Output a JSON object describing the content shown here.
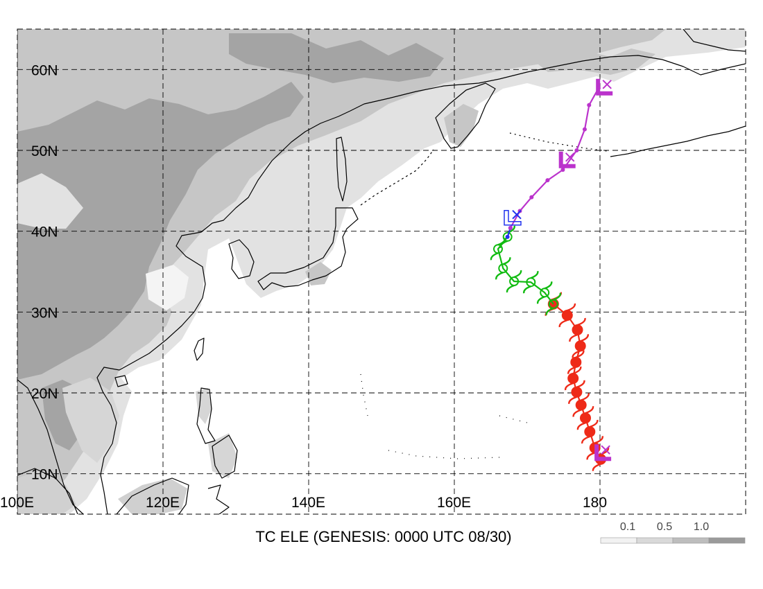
{
  "title": "TC ELE (GENESIS: 0000 UTC 08/30)",
  "map": {
    "lon_range": [
      100,
      200
    ],
    "lat_range": [
      5,
      65
    ],
    "lon_ticks": [
      {
        "lon": 100,
        "label": "100E"
      },
      {
        "lon": 120,
        "label": "120E"
      },
      {
        "lon": 140,
        "label": "140E"
      },
      {
        "lon": 160,
        "label": "160E"
      },
      {
        "lon": 180,
        "label": "180"
      }
    ],
    "lat_ticks": [
      {
        "lat": 10,
        "label": "10N"
      },
      {
        "lat": 20,
        "label": "20N"
      },
      {
        "lat": 30,
        "label": "30N"
      },
      {
        "lat": 40,
        "label": "40N"
      },
      {
        "lat": 50,
        "label": "50N"
      },
      {
        "lat": 60,
        "label": "60N"
      }
    ],
    "grid": "dashed"
  },
  "legend": {
    "labels": [
      "0.1",
      "0.5",
      "1.0"
    ],
    "colors": [
      "#f2f2f2",
      "#d9d9d9",
      "#bdbdbd",
      "#9a9a9a"
    ]
  },
  "colors": {
    "red": "#ee2a18",
    "green": "#11bb11",
    "purple": "#bb33cc",
    "blue": "#2233ee",
    "land_light": "#e2e2e2",
    "land_mid": "#c6c6c6",
    "land_dark": "#a4a4a4",
    "coast": "#000000"
  },
  "track": {
    "segments": [
      {
        "stage": "red",
        "points": [
          [
            180.1,
            11.8
          ],
          [
            179.3,
            13.2
          ],
          [
            178.6,
            15.2
          ],
          [
            178.0,
            16.9
          ],
          [
            177.4,
            18.5
          ],
          [
            176.8,
            20.1
          ],
          [
            176.3,
            21.8
          ],
          [
            176.7,
            23.8
          ],
          [
            177.3,
            25.8
          ],
          [
            176.9,
            27.8
          ],
          [
            175.5,
            29.6
          ],
          [
            173.6,
            31.0
          ]
        ]
      },
      {
        "stage": "green",
        "points": [
          [
            173.6,
            31.0
          ],
          [
            172.4,
            32.4
          ],
          [
            170.5,
            33.7
          ],
          [
            168.2,
            33.8
          ],
          [
            166.7,
            35.4
          ],
          [
            166.0,
            37.8
          ],
          [
            167.3,
            39.3
          ]
        ]
      },
      {
        "stage": "blue",
        "points": [
          [
            167.3,
            39.3
          ],
          [
            167.7,
            40.4
          ]
        ]
      },
      {
        "stage": "purple",
        "points": [
          [
            167.7,
            40.4
          ],
          [
            169.0,
            42.5
          ],
          [
            170.6,
            44.2
          ],
          [
            172.8,
            46.3
          ],
          [
            174.9,
            47.6
          ],
          [
            176.8,
            50.0
          ],
          [
            177.9,
            52.6
          ],
          [
            178.5,
            55.6
          ],
          [
            179.8,
            57.7
          ]
        ]
      }
    ],
    "markers": [
      {
        "lon": 180.2,
        "lat": 12.1,
        "color": "purple",
        "style": "bold"
      },
      {
        "lon": 168.0,
        "lat": 41.2,
        "color": "blue",
        "style": "outline"
      },
      {
        "lon": 175.3,
        "lat": 48.3,
        "color": "purple",
        "style": "bold"
      },
      {
        "lon": 180.4,
        "lat": 57.3,
        "color": "purple",
        "style": "bold"
      }
    ]
  }
}
